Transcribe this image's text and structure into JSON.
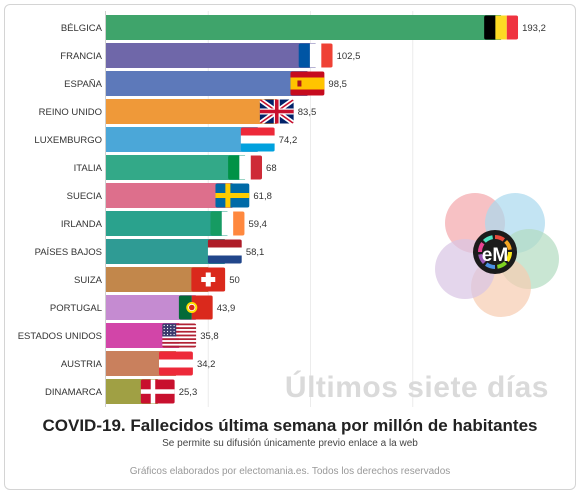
{
  "chart_data": {
    "type": "bar",
    "orientation": "horizontal",
    "categories": [
      "BÉLGICA",
      "FRANCIA",
      "ESPAÑA",
      "REINO UNIDO",
      "LUXEMBURGO",
      "ITALIA",
      "SUECIA",
      "IRLANDA",
      "PAÍSES BAJOS",
      "SUIZA",
      "PORTUGAL",
      "ESTADOS UNIDOS",
      "AUSTRIA",
      "DINAMARCA"
    ],
    "values": [
      193.2,
      102.5,
      98.5,
      83.5,
      74.2,
      68,
      61.8,
      59.4,
      58.1,
      50,
      43.9,
      35.8,
      34.2,
      25.3
    ],
    "value_labels": [
      "193,2",
      "102,5",
      "98,5",
      "83,5",
      "74,2",
      "68",
      "61,8",
      "59,4",
      "58,1",
      "50",
      "43,9",
      "35,8",
      "34,2",
      "25,3"
    ],
    "colors": [
      "#3fa46b",
      "#6f67a9",
      "#5d79ba",
      "#ef9939",
      "#4ba7d8",
      "#33a988",
      "#dd6f8c",
      "#2aa28d",
      "#2f9b94",
      "#c2874b",
      "#c58bd1",
      "#d245a8",
      "#c9805d",
      "#a0a044"
    ],
    "flags": [
      "belgium",
      "france",
      "spain",
      "uk",
      "luxembourg",
      "italy",
      "sweden",
      "ireland",
      "netherlands",
      "switzerland",
      "portugal",
      "usa",
      "austria",
      "denmark"
    ],
    "grid": true,
    "xlim": [
      0,
      200
    ],
    "title": "COVID-19. Fallecidos última semana por millón de habitantes",
    "subtitle": "Se permite su difusión únicamente previo enlace a la web",
    "annotation": "Últimos siete días"
  },
  "footer": {
    "credits": "Gráficos elaborados por electomania.es. Todos los derechos reservados"
  },
  "logo": {
    "text": "eM",
    "circle_colors": [
      "#f4a7ab",
      "#a9d8ee",
      "#b2dcc0",
      "#f7ccb0",
      "#d9c4e4"
    ]
  }
}
